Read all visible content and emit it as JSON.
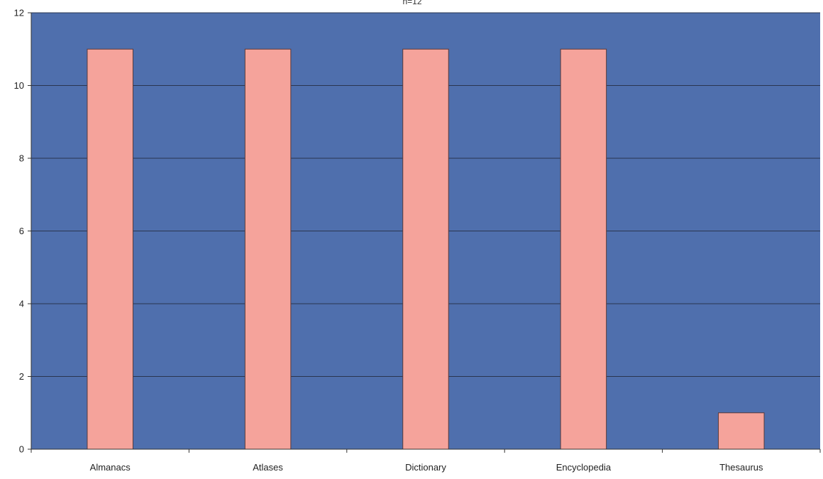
{
  "chart_data": {
    "type": "bar",
    "title": "n=12",
    "xlabel": "",
    "ylabel": "",
    "categories": [
      "Almanacs",
      "Atlases",
      "Dictionary",
      "Encyclopedia",
      "Thesaurus"
    ],
    "values": [
      11,
      11,
      11,
      11,
      1
    ],
    "ylim": [
      0,
      12
    ],
    "yticks": [
      0,
      2,
      4,
      6,
      8,
      10,
      12
    ],
    "grid": true,
    "legend": "none",
    "colors": {
      "plot_background": "#4f6fad",
      "bar_fill": "#f5a39b",
      "bar_stroke": "#5a3a3a",
      "gridline": "#2a3550",
      "axis": "#333333"
    }
  }
}
